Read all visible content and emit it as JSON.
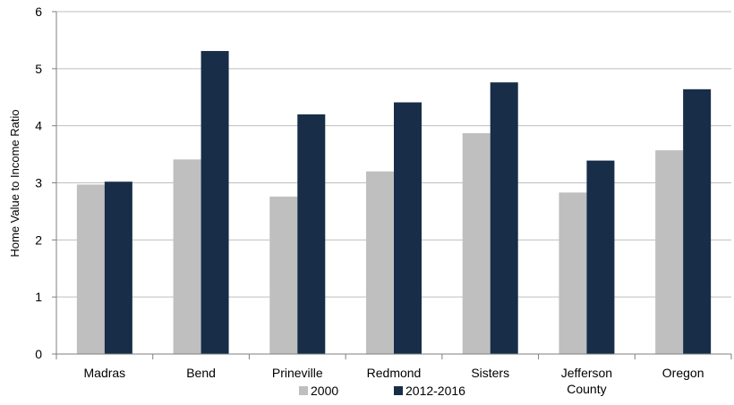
{
  "chart_data": {
    "type": "bar",
    "title": "",
    "xlabel": "",
    "ylabel": "Home Value to Income Ratio",
    "ylim": [
      0,
      6
    ],
    "yticks": [
      0,
      1,
      2,
      3,
      4,
      5,
      6
    ],
    "grid": true,
    "legend_position": "bottom",
    "categories": [
      "Madras",
      "Bend",
      "Prineville",
      "Redmond",
      "Sisters",
      "Jefferson County",
      "Oregon"
    ],
    "category_lines": [
      [
        "Madras"
      ],
      [
        "Bend"
      ],
      [
        "Prineville"
      ],
      [
        "Redmond"
      ],
      [
        "Sisters"
      ],
      [
        "Jefferson",
        "County"
      ],
      [
        "Oregon"
      ]
    ],
    "series": [
      {
        "name": "2000",
        "color": "#bfbfbf",
        "values": [
          2.97,
          3.41,
          2.76,
          3.2,
          3.87,
          2.83,
          3.57
        ]
      },
      {
        "name": "2012-2016",
        "color": "#172d48",
        "values": [
          3.02,
          5.31,
          4.2,
          4.41,
          4.76,
          3.39,
          4.64
        ]
      }
    ]
  }
}
